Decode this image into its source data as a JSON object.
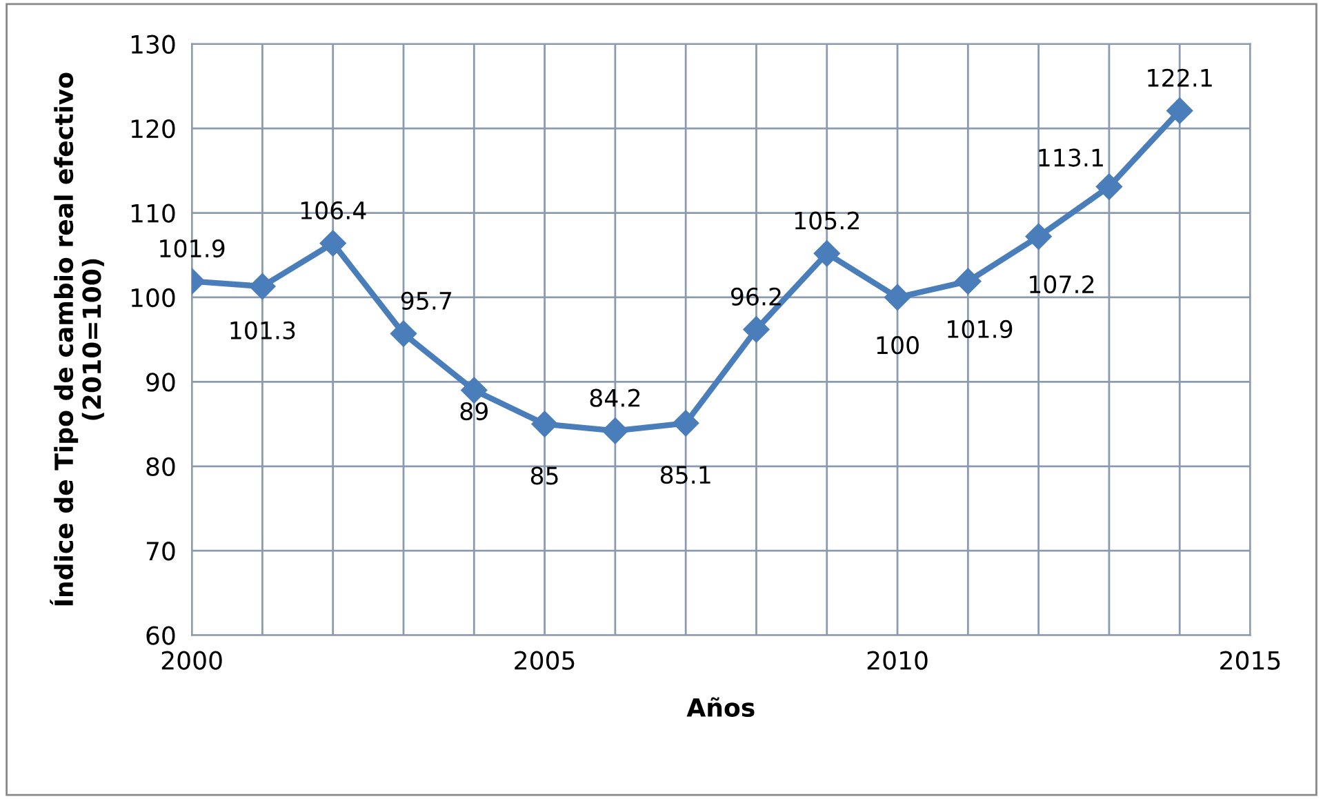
{
  "chart_data": {
    "type": "line",
    "xlabel": "Años",
    "ylabel": "Índice de Tipo de cambio real efectivo\n(2010=100)",
    "x": [
      2000,
      2001,
      2002,
      2003,
      2004,
      2005,
      2006,
      2007,
      2008,
      2009,
      2010,
      2011,
      2012,
      2013,
      2014
    ],
    "series": [
      {
        "color": "#4a7ebb",
        "values": [
          101.9,
          101.3,
          106.4,
          95.7,
          89,
          85,
          84.2,
          85.1,
          96.2,
          105.2,
          100,
          101.9,
          107.2,
          113.1,
          122.1
        ]
      }
    ],
    "xlim": [
      2000,
      2015
    ],
    "xticks": [
      2000,
      {
        "value": 2001,
        "label": null
      },
      {
        "value": 2002,
        "label": null
      },
      {
        "value": 2003,
        "label": null
      },
      {
        "value": 2004,
        "label": null
      },
      2005,
      {
        "value": 2006,
        "label": null
      },
      {
        "value": 2007,
        "label": null
      },
      {
        "value": 2008,
        "label": null
      },
      {
        "value": 2009,
        "label": null
      },
      2010,
      {
        "value": 2011,
        "label": null
      },
      {
        "value": 2012,
        "label": null
      },
      {
        "value": 2013,
        "label": null
      },
      {
        "value": 2014,
        "label": null
      },
      2015
    ],
    "ylim": [
      60,
      130
    ],
    "yticks": [
      60,
      70,
      80,
      90,
      100,
      110,
      120,
      130
    ],
    "grid": true,
    "marker": "diamond",
    "line_style": "solid",
    "data_labels": true
  }
}
